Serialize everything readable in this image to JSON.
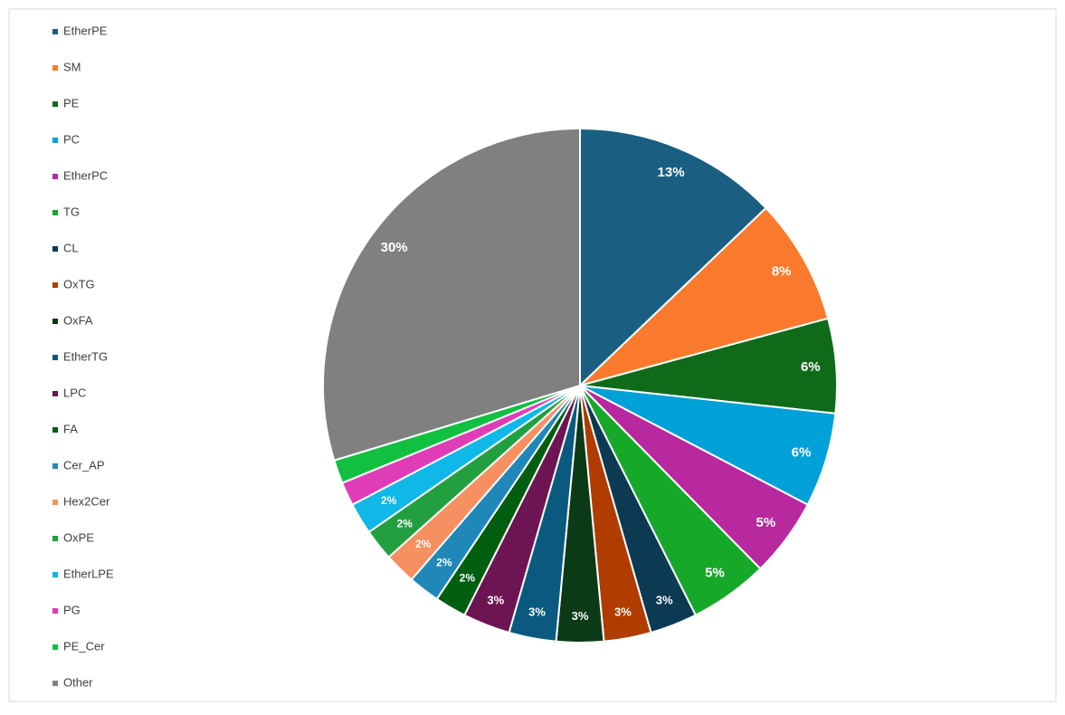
{
  "chart_data": {
    "type": "pie",
    "categories": [
      "EtherPE",
      "SM",
      "PE",
      "PC",
      "EtherPC",
      "TG",
      "CL",
      "OxTG",
      "OxFA",
      "EtherTG",
      "LPC",
      "FA",
      "Cer_AP",
      "Hex2Cer",
      "OxPE",
      "EtherLPE",
      "PG",
      "PE_Cer",
      "Other"
    ],
    "values": [
      13,
      8,
      6,
      6,
      5,
      5,
      3,
      3,
      3,
      3,
      3,
      2,
      2,
      2,
      2,
      2,
      1.5,
      1.5,
      30
    ],
    "value_labels": [
      "13%",
      "8%",
      "6%",
      "6%",
      "5%",
      "5%",
      "3%",
      "3%",
      "3%",
      "3%",
      "3%",
      "2%",
      "2%",
      "2%",
      "2%",
      "2%",
      null,
      null,
      "30%"
    ],
    "colors": [
      "#1a5f82",
      "#f97a2c",
      "#0f6b1a",
      "#00a0d8",
      "#b8289e",
      "#16a828",
      "#0c3a52",
      "#b03c00",
      "#0b3a16",
      "#0a5a80",
      "#6d1553",
      "#005e10",
      "#1f88b8",
      "#f69060",
      "#22a040",
      "#10b8e8",
      "#e03cb8",
      "#12c040",
      "#808080"
    ],
    "legend": "left"
  }
}
